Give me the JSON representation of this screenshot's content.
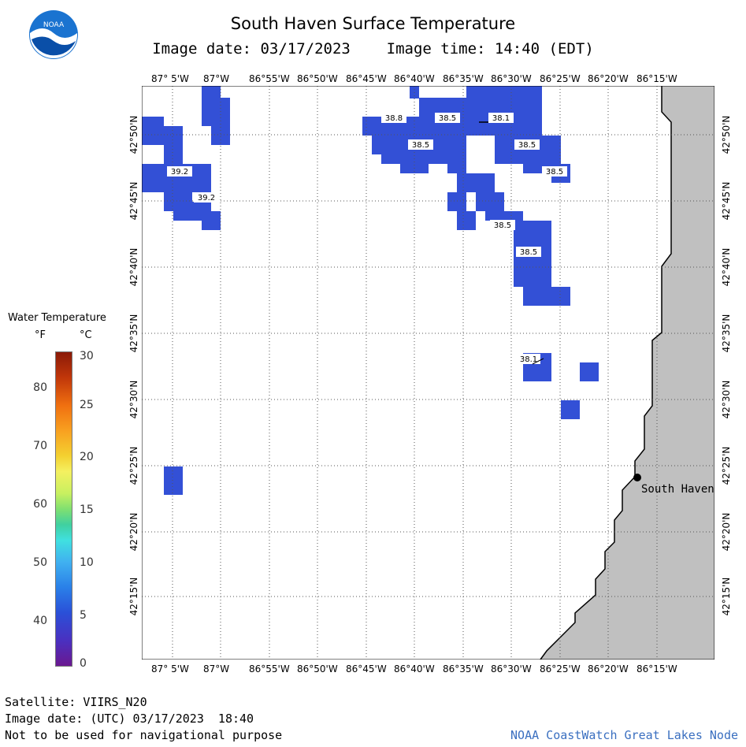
{
  "header": {
    "title": "South Haven Surface Temperature",
    "image_date_label": "Image date: 03/17/2023",
    "image_time_label": "Image time: 14:40 (EDT)"
  },
  "legend": {
    "title": "Water Temperature",
    "unit_f": "°F",
    "unit_c": "°C",
    "ticks_f": [
      "80",
      "70",
      "60",
      "50",
      "40"
    ],
    "ticks_c": [
      "30",
      "25",
      "20",
      "15",
      "10",
      "5",
      "0"
    ],
    "min_c": 0,
    "max_c": 30
  },
  "map": {
    "lon_labels": [
      "87° 5'W",
      "87°W",
      "86°55'W",
      "86°50'W",
      "86°45'W",
      "86°40'W",
      "86°35'W",
      "86°30'W",
      "86°25'W",
      "86°20'W",
      "86°15'W"
    ],
    "lat_labels": [
      "42°50'N",
      "42°45'N",
      "42°40'N",
      "42°35'N",
      "42°30'N",
      "42°25'N",
      "42°20'N",
      "42°15'N"
    ],
    "city": "South Haven",
    "water_color": "#3350d6",
    "land_color": "#c0c0c0",
    "temperature_labels": [
      "38.8",
      "38.5",
      "38.1",
      "38.5",
      "38.5",
      "39.2",
      "38.5",
      "39.2",
      "38.5",
      "38.5",
      "38.1"
    ]
  },
  "footer": {
    "satellite": "Satellite: VIIRS_N20",
    "utc_date": "Image date: (UTC) 03/17/2023  18:40",
    "disclaimer": "Not to be used for navigational purpose",
    "credit": "NOAA CoastWatch Great Lakes Node"
  }
}
